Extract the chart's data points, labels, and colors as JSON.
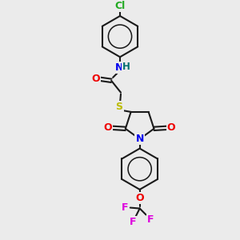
{
  "background_color": "#ebebeb",
  "bond_color": "#1a1a1a",
  "atom_colors": {
    "Cl": "#22aa22",
    "N": "#0000ee",
    "H": "#007070",
    "O": "#ee0000",
    "S": "#bbbb00",
    "F": "#dd00dd"
  },
  "figsize": [
    3.0,
    3.0
  ],
  "dpi": 100
}
